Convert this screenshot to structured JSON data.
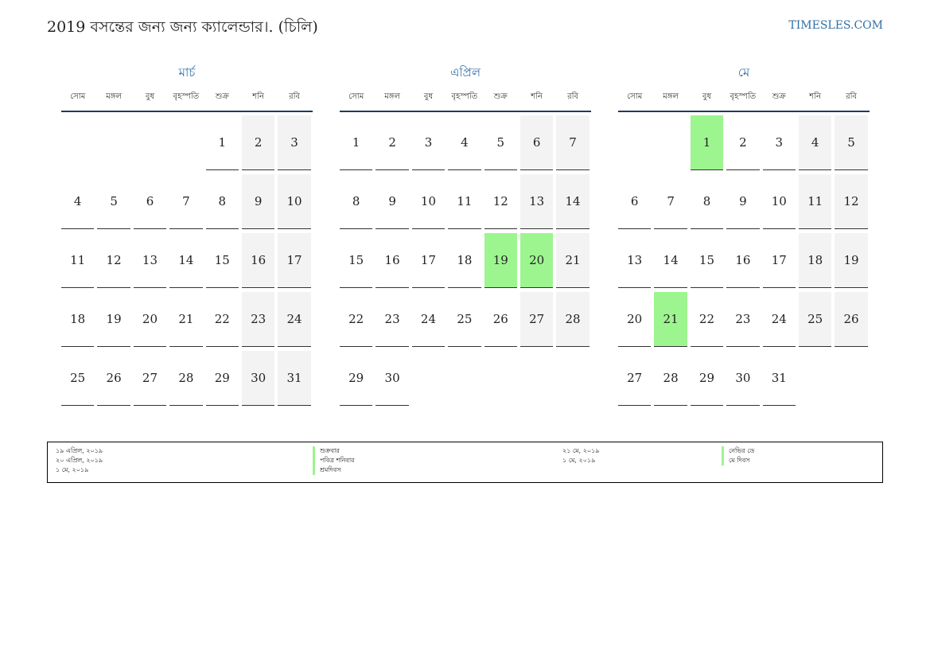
{
  "header": {
    "title": "2019 বসন্তের জন্য জন্য ক্যালেন্ডার।. (চিলি)",
    "site": "TIMESLES.COM"
  },
  "weekdays": [
    "সোম",
    "মঙ্গল",
    "বুধ",
    "বৃহস্পতি",
    "শুক্র",
    "শনি",
    "রবি"
  ],
  "colors": {
    "accent": "#2f6fa6",
    "holiday": "#9df58f",
    "weekend": "#f3f3f3",
    "rule": "#1f3b5e"
  },
  "months": [
    {
      "name": "মার্চ",
      "start_offset": 4,
      "days": 31,
      "holidays": []
    },
    {
      "name": "এপ্রিল",
      "start_offset": 0,
      "days": 30,
      "holidays": [
        19,
        20
      ]
    },
    {
      "name": "মে",
      "start_offset": 2,
      "days": 31,
      "holidays": [
        1,
        21
      ]
    }
  ],
  "legend": {
    "left": [
      {
        "date": "১৯ এপ্রিল, ২০১৯",
        "name": "শুক্রবার"
      },
      {
        "date": "২০ এপ্রিল, ২০১৯",
        "name": "পবিত্র শনিবার"
      },
      {
        "date": "১ মে, ২০১৯",
        "name": "শ্রমদিবস"
      }
    ],
    "right": [
      {
        "date": "২১ মে, ২০১৯",
        "name": "নেভির ডে"
      },
      {
        "date": "১ মে, ২০১৯",
        "name": "মে দিবস"
      }
    ]
  }
}
